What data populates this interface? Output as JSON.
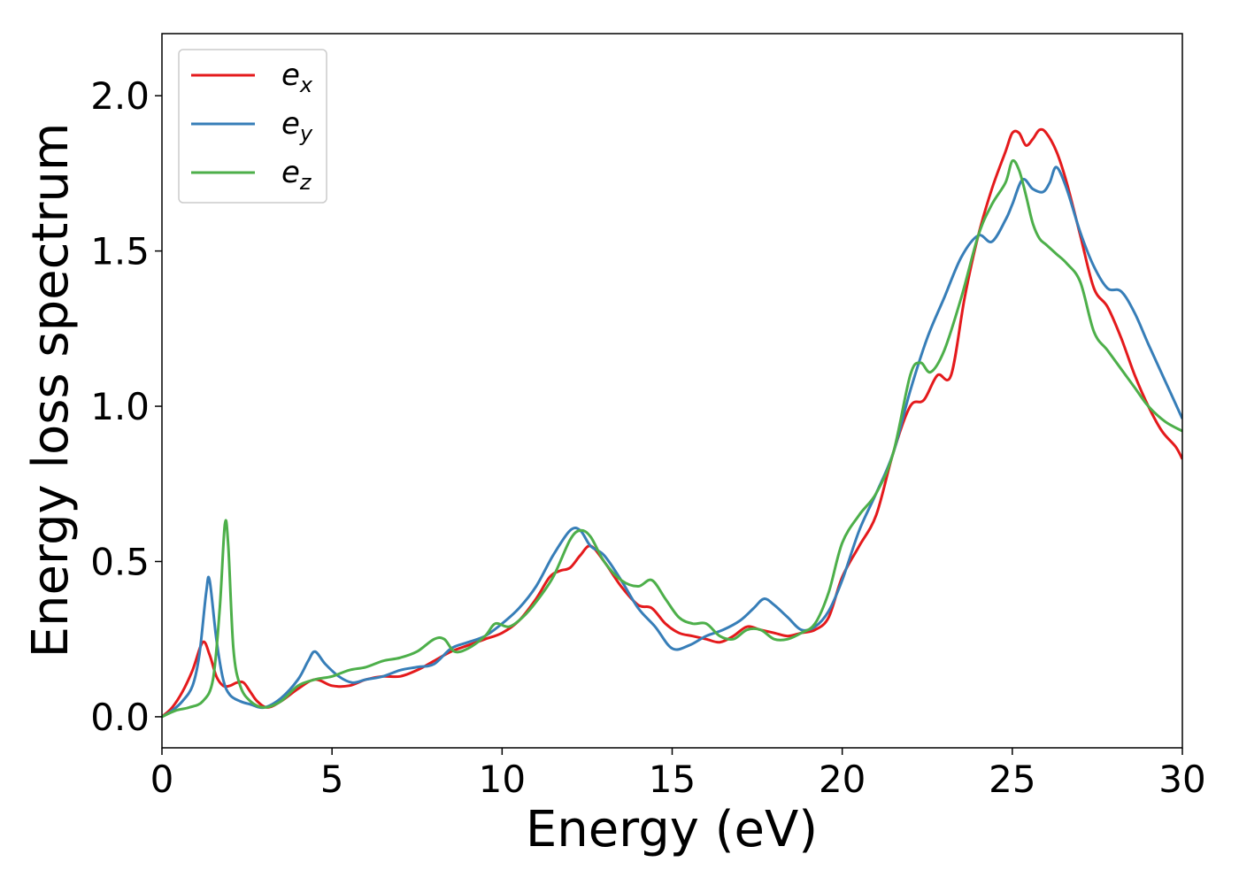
{
  "chart_data": {
    "type": "line",
    "xlabel": "Energy (eV)",
    "ylabel": "Energy loss spectrum",
    "xlim": [
      0,
      30
    ],
    "ylim": [
      -0.1,
      2.2
    ],
    "xticks": [
      0,
      5,
      10,
      15,
      20,
      25,
      30
    ],
    "xtick_labels": [
      "0",
      "5",
      "10",
      "15",
      "20",
      "25",
      "30"
    ],
    "yticks": [
      0.0,
      0.5,
      1.0,
      1.5,
      2.0
    ],
    "ytick_labels": [
      "0.0",
      "0.5",
      "1.0",
      "1.5",
      "2.0"
    ],
    "grid": false,
    "legend_position": "top-left",
    "series": [
      {
        "name": "e_x",
        "legend_base": "e",
        "legend_sub": "x",
        "color": "#e41a1c",
        "x": [
          0,
          0.3,
          0.6,
          0.9,
          1.2,
          1.4,
          1.6,
          1.8,
          2.0,
          2.2,
          2.4,
          2.6,
          2.8,
          3.1,
          3.5,
          4.0,
          4.5,
          5.0,
          5.5,
          6.0,
          6.5,
          7.0,
          7.5,
          8.0,
          8.5,
          9.0,
          9.5,
          10.0,
          10.5,
          11.0,
          11.4,
          11.7,
          12.0,
          12.3,
          12.6,
          13.0,
          13.5,
          14.0,
          14.4,
          14.8,
          15.2,
          15.6,
          16.0,
          16.4,
          16.8,
          17.2,
          17.6,
          18.0,
          18.4,
          18.8,
          19.2,
          19.6,
          20.0,
          20.5,
          21.0,
          21.5,
          22.0,
          22.4,
          22.8,
          23.2,
          23.6,
          24.0,
          24.4,
          24.8,
          25.0,
          25.2,
          25.4,
          25.6,
          25.8,
          26.0,
          26.3,
          26.6,
          27.0,
          27.4,
          27.8,
          28.2,
          28.6,
          29.0,
          29.4,
          29.8,
          30.0
        ],
        "y": [
          0.0,
          0.03,
          0.08,
          0.15,
          0.24,
          0.2,
          0.13,
          0.1,
          0.1,
          0.11,
          0.11,
          0.08,
          0.05,
          0.03,
          0.05,
          0.09,
          0.12,
          0.1,
          0.1,
          0.12,
          0.13,
          0.13,
          0.15,
          0.18,
          0.21,
          0.23,
          0.25,
          0.27,
          0.31,
          0.38,
          0.45,
          0.47,
          0.48,
          0.52,
          0.55,
          0.5,
          0.42,
          0.36,
          0.35,
          0.3,
          0.27,
          0.26,
          0.25,
          0.24,
          0.26,
          0.29,
          0.28,
          0.27,
          0.26,
          0.27,
          0.28,
          0.32,
          0.45,
          0.55,
          0.65,
          0.85,
          1.0,
          1.02,
          1.1,
          1.1,
          1.35,
          1.55,
          1.7,
          1.82,
          1.88,
          1.88,
          1.84,
          1.86,
          1.89,
          1.88,
          1.82,
          1.72,
          1.55,
          1.38,
          1.32,
          1.22,
          1.1,
          1.0,
          0.92,
          0.87,
          0.83
        ]
      },
      {
        "name": "e_y",
        "legend_base": "e",
        "legend_sub": "y",
        "color": "#377eb8",
        "x": [
          0,
          0.3,
          0.6,
          0.9,
          1.1,
          1.3,
          1.4,
          1.6,
          1.8,
          2.0,
          2.3,
          2.6,
          3.0,
          3.5,
          4.0,
          4.3,
          4.5,
          4.8,
          5.2,
          5.6,
          6.0,
          6.5,
          7.0,
          7.5,
          8.0,
          8.5,
          9.0,
          9.5,
          10.0,
          10.5,
          11.0,
          11.5,
          12.0,
          12.3,
          12.6,
          13.0,
          13.5,
          14.0,
          14.5,
          15.0,
          15.5,
          16.0,
          16.5,
          17.0,
          17.4,
          17.7,
          18.0,
          18.4,
          18.8,
          19.2,
          19.6,
          20.0,
          20.5,
          21.0,
          21.5,
          22.0,
          22.5,
          23.0,
          23.5,
          24.0,
          24.4,
          24.8,
          25.0,
          25.3,
          25.6,
          25.9,
          26.1,
          26.3,
          26.6,
          27.0,
          27.4,
          27.8,
          28.2,
          28.6,
          29.0,
          29.5,
          30.0
        ],
        "y": [
          0.0,
          0.02,
          0.05,
          0.1,
          0.2,
          0.4,
          0.44,
          0.25,
          0.12,
          0.07,
          0.05,
          0.04,
          0.03,
          0.06,
          0.12,
          0.18,
          0.21,
          0.17,
          0.13,
          0.11,
          0.12,
          0.13,
          0.15,
          0.16,
          0.17,
          0.22,
          0.24,
          0.26,
          0.3,
          0.35,
          0.42,
          0.52,
          0.6,
          0.6,
          0.55,
          0.52,
          0.44,
          0.35,
          0.29,
          0.22,
          0.23,
          0.26,
          0.28,
          0.31,
          0.35,
          0.38,
          0.36,
          0.32,
          0.28,
          0.29,
          0.34,
          0.44,
          0.6,
          0.72,
          0.85,
          1.05,
          1.22,
          1.35,
          1.48,
          1.55,
          1.53,
          1.6,
          1.65,
          1.73,
          1.7,
          1.69,
          1.72,
          1.77,
          1.7,
          1.56,
          1.45,
          1.38,
          1.37,
          1.3,
          1.2,
          1.08,
          0.96
        ]
      },
      {
        "name": "e_z",
        "legend_base": "e",
        "legend_sub": "z",
        "color": "#4daf4a",
        "x": [
          0,
          0.4,
          0.8,
          1.2,
          1.5,
          1.7,
          1.85,
          1.95,
          2.1,
          2.3,
          2.6,
          3.0,
          3.5,
          4.0,
          4.5,
          5.0,
          5.5,
          6.0,
          6.5,
          7.0,
          7.5,
          8.0,
          8.3,
          8.6,
          9.0,
          9.5,
          9.8,
          10.2,
          10.6,
          11.0,
          11.5,
          12.0,
          12.3,
          12.6,
          13.0,
          13.5,
          14.0,
          14.4,
          14.8,
          15.2,
          15.6,
          16.0,
          16.4,
          16.8,
          17.2,
          17.6,
          18.0,
          18.4,
          18.8,
          19.2,
          19.6,
          20.0,
          20.5,
          21.0,
          21.5,
          22.0,
          22.3,
          22.6,
          23.0,
          23.5,
          24.0,
          24.4,
          24.8,
          25.0,
          25.2,
          25.4,
          25.6,
          25.8,
          26.0,
          26.3,
          26.6,
          27.0,
          27.4,
          27.8,
          28.2,
          28.6,
          29.0,
          29.5,
          30.0
        ],
        "y": [
          0.0,
          0.02,
          0.03,
          0.05,
          0.12,
          0.35,
          0.62,
          0.55,
          0.22,
          0.1,
          0.05,
          0.03,
          0.05,
          0.1,
          0.12,
          0.13,
          0.15,
          0.16,
          0.18,
          0.19,
          0.21,
          0.25,
          0.25,
          0.21,
          0.22,
          0.26,
          0.3,
          0.29,
          0.32,
          0.37,
          0.45,
          0.57,
          0.6,
          0.58,
          0.5,
          0.44,
          0.42,
          0.44,
          0.38,
          0.32,
          0.3,
          0.3,
          0.26,
          0.25,
          0.28,
          0.28,
          0.25,
          0.25,
          0.27,
          0.3,
          0.4,
          0.56,
          0.65,
          0.72,
          0.85,
          1.1,
          1.14,
          1.11,
          1.18,
          1.35,
          1.55,
          1.65,
          1.72,
          1.79,
          1.76,
          1.68,
          1.59,
          1.54,
          1.52,
          1.49,
          1.46,
          1.4,
          1.24,
          1.18,
          1.12,
          1.06,
          1.0,
          0.95,
          0.92
        ]
      }
    ]
  }
}
